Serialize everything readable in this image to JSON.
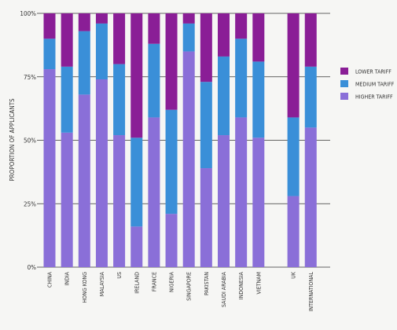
{
  "chart_data": {
    "type": "bar",
    "stacked": true,
    "orientation": "vertical",
    "ylabel": "PROPORTION OF APPLICANTS",
    "yticks": [
      "0%",
      "25%",
      "50%",
      "75%",
      "100%"
    ],
    "ylim": [
      0,
      100
    ],
    "grid": true,
    "legend_position": "right",
    "categories": [
      "CHINA",
      "INDIA",
      "HONG KONG",
      "MALAYSIA",
      "US",
      "IRELAND",
      "FRANCE",
      "NIGERIA",
      "SINGAPORE",
      "PAKISTAN",
      "SAUDI ARABIA",
      "INDONESIA",
      "VIETNAM",
      "",
      "UK",
      "INTERNATIONAL"
    ],
    "series": [
      {
        "name": "HIGHER TARIFF",
        "color": "#8a6fd8",
        "values": [
          78,
          53,
          68,
          74,
          52,
          16,
          59,
          21,
          85,
          39,
          52,
          59,
          51,
          null,
          28,
          55
        ]
      },
      {
        "name": "MEDIUM TARIFF",
        "color": "#3a8fd8",
        "values": [
          12,
          26,
          25,
          22,
          28,
          35,
          29,
          41,
          11,
          34,
          31,
          31,
          30,
          null,
          31,
          24
        ]
      },
      {
        "name": "LOWER TARIFF",
        "color": "#8a1e96",
        "values": [
          10,
          21,
          7,
          4,
          20,
          49,
          12,
          38,
          4,
          27,
          17,
          10,
          19,
          null,
          41,
          21
        ]
      }
    ]
  }
}
